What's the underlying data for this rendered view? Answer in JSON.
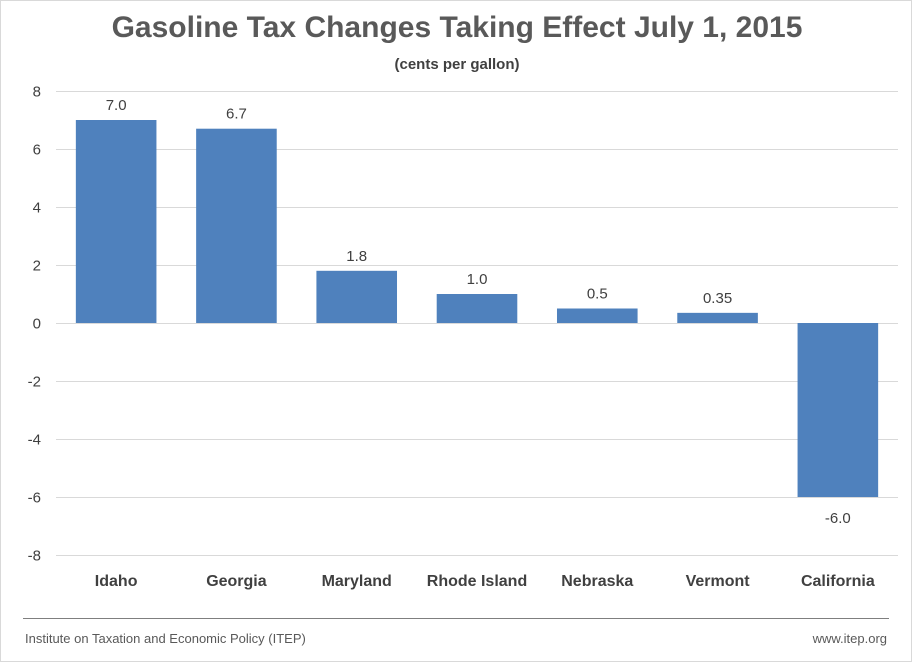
{
  "chart_data": {
    "type": "bar",
    "title": "Gasoline Tax Changes Taking Effect July 1, 2015",
    "subtitle": "(cents per gallon)",
    "xlabel": "",
    "ylabel": "",
    "categories": [
      "Idaho",
      "Georgia",
      "Maryland",
      "Rhode Island",
      "Nebraska",
      "Vermont",
      "California"
    ],
    "values": [
      7.0,
      6.7,
      1.8,
      1.0,
      0.5,
      0.35,
      -6.0
    ],
    "value_labels": [
      "7.0",
      "6.7",
      "1.8",
      "1.0",
      "0.5",
      "0.35",
      "-6.0"
    ],
    "ylim": [
      -8,
      8
    ],
    "yticks": [
      8,
      6,
      4,
      2,
      0,
      -2,
      -4,
      -6,
      -8
    ],
    "grid": true,
    "legend": "none",
    "bar_color": "#4f81bd",
    "grid_color": "#d9d9d9",
    "label_color": "#404040"
  },
  "footer": {
    "source": "Institute on Taxation and Economic Policy (ITEP)",
    "website": "www.itep.org"
  }
}
